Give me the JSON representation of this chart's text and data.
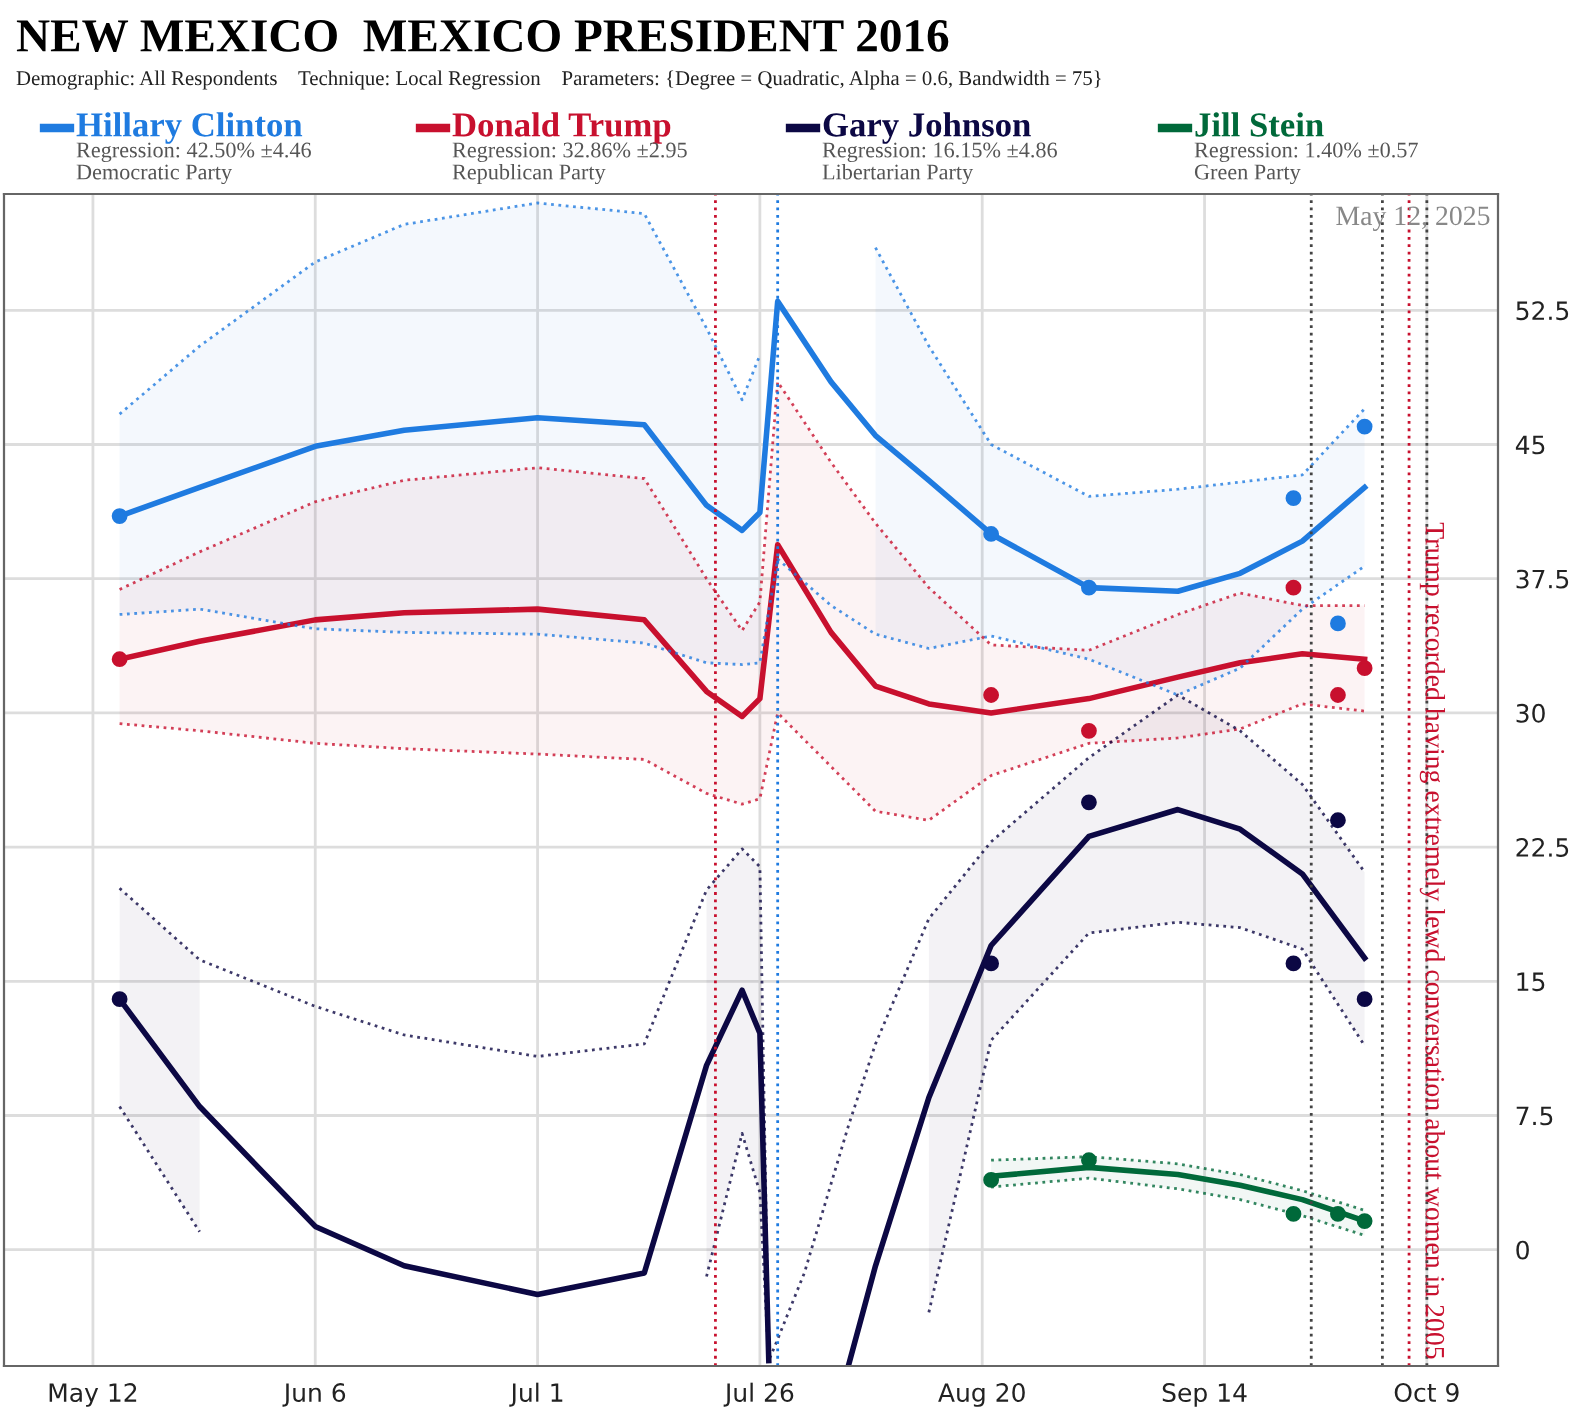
{
  "chart_data": {
    "type": "line",
    "title": "NEW MEXICO  MEXICO PRESIDENT 2016",
    "subtitle": "Demographic: All Respondents    Technique: Local Regression    Parameters: {Degree = Quadratic, Alpha = 0.6, Bandwidth = 75}",
    "annotations": [
      "Regression: 42.50% ±4.46",
      "Democratic Party",
      "Regression: 32.86% ±2.95",
      "Republican Party",
      "Regression: 16.15% ±4.86",
      "Libertarian Party",
      "Regression: 1.40% ±0.57",
      "Green Party",
      "May 12, 2025"
    ],
    "legend": "top",
    "grid": true,
    "xlim": [
      "2016-05-02",
      "2016-10-17"
    ],
    "xticks": [
      {
        "value": "2016-05-12",
        "label": "May 12"
      },
      {
        "value": "2016-06-06",
        "label": "Jun 6"
      },
      {
        "value": "2016-07-01",
        "label": "Jul 1"
      },
      {
        "value": "2016-07-26",
        "label": "Jul 26"
      },
      {
        "value": "2016-08-20",
        "label": "Aug 20"
      },
      {
        "value": "2016-09-14",
        "label": "Sep 14"
      },
      {
        "value": "2016-10-09",
        "label": "Oct 9"
      }
    ],
    "ylim": [
      -6.5,
      59
    ],
    "yticks": [
      0,
      7.5,
      15,
      22.5,
      30,
      37.5,
      45,
      52.5
    ],
    "series": [
      {
        "type": "line",
        "name": "Hillary Clinton",
        "color": "#1f7be0",
        "line_style": "solid",
        "x": [
          "2016-05-15",
          "2016-05-24",
          "2016-06-06",
          "2016-06-16",
          "2016-07-01",
          "2016-07-13",
          "2016-07-20",
          "2016-07-24",
          "2016-07-26",
          "2016-07-28",
          "2016-08-03",
          "2016-08-08",
          "2016-08-14",
          "2016-08-21",
          "2016-09-01",
          "2016-09-11",
          "2016-09-18",
          "2016-09-25",
          "2016-10-02"
        ],
        "values": [
          41.0,
          42.6,
          44.9,
          45.8,
          46.5,
          46.1,
          41.6,
          40.2,
          41.2,
          53.0,
          48.5,
          45.5,
          43.0,
          40.0,
          37.0,
          36.8,
          37.8,
          39.6,
          42.6
        ],
        "lower": [
          35.5,
          35.8,
          34.7,
          34.5,
          34.4,
          33.9,
          32.8,
          32.7,
          32.8,
          null,
          null,
          34.4,
          33.6,
          34.3,
          33.0,
          31.0,
          32.5,
          35.8,
          38.2
        ],
        "upper": [
          46.7,
          50.5,
          55.2,
          57.3,
          58.5,
          57.9,
          51.5,
          47.5,
          50.0,
          null,
          null,
          56.0,
          50.5,
          45.0,
          42.1,
          42.5,
          42.9,
          43.3,
          47.0
        ]
      },
      {
        "type": "line",
        "name": "Donald Trump",
        "color": "#c8102e",
        "line_style": "solid",
        "x": [
          "2016-05-15",
          "2016-05-24",
          "2016-06-06",
          "2016-06-16",
          "2016-07-01",
          "2016-07-13",
          "2016-07-20",
          "2016-07-24",
          "2016-07-26",
          "2016-07-28",
          "2016-08-03",
          "2016-08-08",
          "2016-08-14",
          "2016-08-21",
          "2016-09-01",
          "2016-09-11",
          "2016-09-18",
          "2016-09-25",
          "2016-10-02"
        ],
        "values": [
          33.0,
          34.0,
          35.2,
          35.6,
          35.8,
          35.2,
          31.2,
          29.8,
          30.8,
          39.4,
          34.5,
          31.5,
          30.5,
          30.0,
          30.8,
          32.0,
          32.8,
          33.3,
          33.0
        ],
        "lower": [
          29.4,
          29.0,
          28.3,
          28.0,
          27.7,
          27.4,
          25.5,
          24.9,
          25.2,
          30.0,
          27.0,
          24.5,
          24.0,
          26.5,
          28.3,
          28.6,
          29.1,
          30.5,
          30.1
        ],
        "upper": [
          36.9,
          39.0,
          41.8,
          43.0,
          43.7,
          43.1,
          37.5,
          34.6,
          36.2,
          48.5,
          44.0,
          40.6,
          37.0,
          33.8,
          33.5,
          35.5,
          36.7,
          36.0,
          36.0
        ]
      },
      {
        "type": "line",
        "name": "Gary Johnson",
        "color": "#0c0844",
        "line_style": "solid",
        "x": [
          "2016-05-15",
          "2016-05-24",
          "2016-06-06",
          "2016-06-16",
          "2016-07-01",
          "2016-07-13",
          "2016-07-20",
          "2016-07-24",
          "2016-07-26",
          "2016-07-27",
          "2016-07-28",
          "2016-07-31",
          "2016-08-05",
          "2016-08-08",
          "2016-08-14",
          "2016-08-21",
          "2016-09-01",
          "2016-09-11",
          "2016-09-18",
          "2016-09-25",
          "2016-10-02"
        ],
        "values": [
          14.0,
          8.0,
          1.3,
          -0.9,
          -2.5,
          -1.3,
          10.3,
          14.5,
          12.1,
          -6.2,
          null,
          null,
          -6.4,
          -0.9,
          8.5,
          17.0,
          23.1,
          24.6,
          23.5,
          21.0,
          16.3
        ],
        "lower": [
          8.0,
          1.0,
          null,
          null,
          null,
          null,
          -1.5,
          6.5,
          3.2,
          -6.4,
          null,
          null,
          null,
          null,
          -3.5,
          11.7,
          17.7,
          18.3,
          18.0,
          16.8,
          11.4
        ],
        "upper": [
          20.2,
          16.2,
          null,
          null,
          null,
          null,
          20.1,
          22.4,
          21.4,
          -6.2,
          null,
          null,
          null,
          null,
          18.5,
          22.8,
          27.5,
          31.0,
          29.0,
          26.0,
          21.1
        ]
      },
      {
        "type": "line",
        "name": "Jill Stein",
        "color": "#00693a",
        "line_style": "solid",
        "x": [
          "2016-08-21",
          "2016-09-01",
          "2016-09-11",
          "2016-09-18",
          "2016-09-25",
          "2016-10-02"
        ],
        "values": [
          4.1,
          4.6,
          4.2,
          3.6,
          2.8,
          1.6
        ],
        "lower": [
          3.5,
          4.0,
          3.4,
          2.8,
          1.9,
          0.8
        ],
        "upper": [
          5.0,
          5.2,
          4.8,
          4.2,
          3.3,
          2.2
        ]
      },
      {
        "color": "#1f7be0",
        "line_style": "dotted",
        "x": [
          "2016-05-15",
          "2016-05-24",
          "2016-06-06",
          "2016-06-16",
          "2016-07-01",
          "2016-07-13",
          "2016-07-20",
          "2016-07-24",
          "2016-07-26",
          "2016-07-28",
          "2016-08-03",
          "2016-08-08",
          "2016-08-14",
          "2016-08-21",
          "2016-09-01",
          "2016-09-11",
          "2016-09-18",
          "2016-09-25",
          "2016-10-02"
        ],
        "values": [
          35.5,
          35.8,
          34.7,
          34.5,
          34.4,
          33.9,
          32.8,
          32.7,
          32.8,
          38.6,
          36.0,
          34.4,
          33.6,
          34.3,
          33.0,
          31.0,
          32.5,
          35.8,
          38.2
        ]
      },
      {
        "color": "#1f7be0",
        "line_style": "dotted",
        "x": [
          "2016-05-15",
          "2016-05-24",
          "2016-06-06",
          "2016-06-16",
          "2016-07-01",
          "2016-07-13",
          "2016-07-20",
          "2016-07-24",
          "2016-07-26",
          "2016-07-28",
          "2016-08-03",
          "2016-08-08",
          "2016-08-14",
          "2016-08-21",
          "2016-09-01",
          "2016-09-11",
          "2016-09-18",
          "2016-09-25",
          "2016-10-02"
        ],
        "values": [
          46.7,
          50.5,
          55.2,
          57.3,
          58.5,
          57.9,
          51.5,
          47.5,
          50.0,
          null,
          null,
          56.0,
          50.5,
          45.0,
          42.1,
          42.5,
          42.9,
          43.3,
          47.0
        ]
      },
      {
        "color": "#c8102e",
        "line_style": "dotted",
        "x": [
          "2016-05-15",
          "2016-05-24",
          "2016-06-06",
          "2016-06-16",
          "2016-07-01",
          "2016-07-13",
          "2016-07-20",
          "2016-07-24",
          "2016-07-26",
          "2016-07-28",
          "2016-08-03",
          "2016-08-08",
          "2016-08-14",
          "2016-08-21",
          "2016-09-01",
          "2016-09-11",
          "2016-09-18",
          "2016-09-25",
          "2016-10-02"
        ],
        "values": [
          29.4,
          29.0,
          28.3,
          28.0,
          27.7,
          27.4,
          25.5,
          24.9,
          25.2,
          30.0,
          27.0,
          24.5,
          24.0,
          26.5,
          28.3,
          28.6,
          29.1,
          30.5,
          30.1
        ]
      },
      {
        "color": "#c8102e",
        "line_style": "dotted",
        "x": [
          "2016-05-15",
          "2016-05-24",
          "2016-06-06",
          "2016-06-16",
          "2016-07-01",
          "2016-07-13",
          "2016-07-20",
          "2016-07-24",
          "2016-07-26",
          "2016-07-28",
          "2016-08-03",
          "2016-08-08",
          "2016-08-14",
          "2016-08-21",
          "2016-09-01",
          "2016-09-11",
          "2016-09-18",
          "2016-09-25",
          "2016-10-02"
        ],
        "values": [
          36.9,
          39.0,
          41.8,
          43.0,
          43.7,
          43.1,
          37.5,
          34.6,
          36.2,
          48.5,
          44.0,
          40.6,
          37.0,
          33.8,
          33.5,
          35.5,
          36.7,
          36.0,
          36.0
        ]
      },
      {
        "color": "#0c0844",
        "line_style": "dotted",
        "x": [
          "2016-05-15",
          "2016-05-24",
          "2016-06-06",
          "2016-06-16",
          "2016-07-01",
          "2016-07-13",
          "2016-07-20",
          "2016-07-24",
          "2016-07-26",
          "2016-07-27",
          "2016-07-28",
          "2016-07-31",
          "2016-08-05",
          "2016-08-08",
          "2016-08-14",
          "2016-08-21",
          "2016-09-01",
          "2016-09-11",
          "2016-09-18",
          "2016-09-25",
          "2016-10-02"
        ],
        "values": [
          8.0,
          1.0,
          null,
          null,
          null,
          null,
          -1.5,
          6.5,
          3.2,
          -6.4,
          null,
          null,
          null,
          null,
          -3.5,
          11.7,
          17.7,
          18.3,
          18.0,
          16.8,
          11.4
        ]
      },
      {
        "color": "#0c0844",
        "line_style": "dotted",
        "x": [
          "2016-05-15",
          "2016-05-24",
          "2016-06-06",
          "2016-06-16",
          "2016-07-01",
          "2016-07-13",
          "2016-07-20",
          "2016-07-24",
          "2016-07-26",
          "2016-07-27",
          "2016-07-28",
          "2016-07-31",
          "2016-08-05",
          "2016-08-08",
          "2016-08-14",
          "2016-08-21",
          "2016-09-01",
          "2016-09-11",
          "2016-09-18",
          "2016-09-25",
          "2016-10-02"
        ],
        "values": [
          20.2,
          16.2,
          13.6,
          12.0,
          10.8,
          11.5,
          20.1,
          22.4,
          21.4,
          -6.2,
          -5.0,
          -1.3,
          7.0,
          11.5,
          18.5,
          22.8,
          27.5,
          31.0,
          29.0,
          26.0,
          21.1
        ]
      },
      {
        "color": "#00693a",
        "line_style": "dotted",
        "x": [
          "2016-08-21",
          "2016-09-01",
          "2016-09-11",
          "2016-09-18",
          "2016-09-25",
          "2016-10-02"
        ],
        "values": [
          3.5,
          4.0,
          3.4,
          2.8,
          1.9,
          0.8
        ]
      },
      {
        "color": "#00693a",
        "line_style": "dotted",
        "x": [
          "2016-08-21",
          "2016-09-01",
          "2016-09-11",
          "2016-09-18",
          "2016-09-25",
          "2016-10-02"
        ],
        "values": [
          5.0,
          5.2,
          4.8,
          4.2,
          3.3,
          2.2
        ]
      },
      {
        "type": "scatter",
        "color": "#1f7be0",
        "marker": "circle",
        "x": [
          "2016-05-15",
          "2016-08-21",
          "2016-09-01",
          "2016-09-24",
          "2016-09-29",
          "2016-10-02"
        ],
        "values": [
          41.0,
          40.0,
          37.0,
          42.0,
          35.0,
          46.0
        ]
      },
      {
        "type": "scatter",
        "color": "#c8102e",
        "marker": "circle",
        "x": [
          "2016-05-15",
          "2016-08-21",
          "2016-09-01",
          "2016-09-24",
          "2016-09-29",
          "2016-10-02"
        ],
        "values": [
          33.0,
          31.0,
          29.0,
          37.0,
          31.0,
          32.5
        ]
      },
      {
        "type": "scatter",
        "color": "#0c0844",
        "marker": "circle",
        "x": [
          "2016-05-15",
          "2016-08-21",
          "2016-09-01",
          "2016-09-24",
          "2016-09-29",
          "2016-10-02"
        ],
        "values": [
          14.0,
          16.0,
          25.0,
          16.0,
          24.0,
          14.0
        ]
      },
      {
        "type": "scatter",
        "color": "#00693a",
        "marker": "circle",
        "x": [
          "2016-08-21",
          "2016-09-01",
          "2016-09-24",
          "2016-09-29",
          "2016-10-02"
        ],
        "values": [
          3.9,
          5.0,
          2.0,
          2.0,
          1.6
        ]
      }
    ],
    "ref_lines": [
      {
        "axis": "x",
        "value": "2016-07-21",
        "color": "#c8102e",
        "line_style": "dotted"
      },
      {
        "axis": "x",
        "value": "2016-07-28",
        "color": "#1f7be0",
        "line_style": "dotted"
      },
      {
        "axis": "x",
        "value": "2016-09-26",
        "color": "#444444",
        "line_style": "dotted"
      },
      {
        "axis": "x",
        "value": "2016-10-04",
        "color": "#444444",
        "line_style": "dotted"
      },
      {
        "axis": "x",
        "value": "2016-10-07",
        "color": "#c8102e",
        "line_style": "dotted",
        "label": "Trump recorded having extremely lewd conversation about women in 2005"
      },
      {
        "axis": "x",
        "value": "2016-10-09",
        "color": "#444444",
        "line_style": "dotted"
      }
    ]
  }
}
